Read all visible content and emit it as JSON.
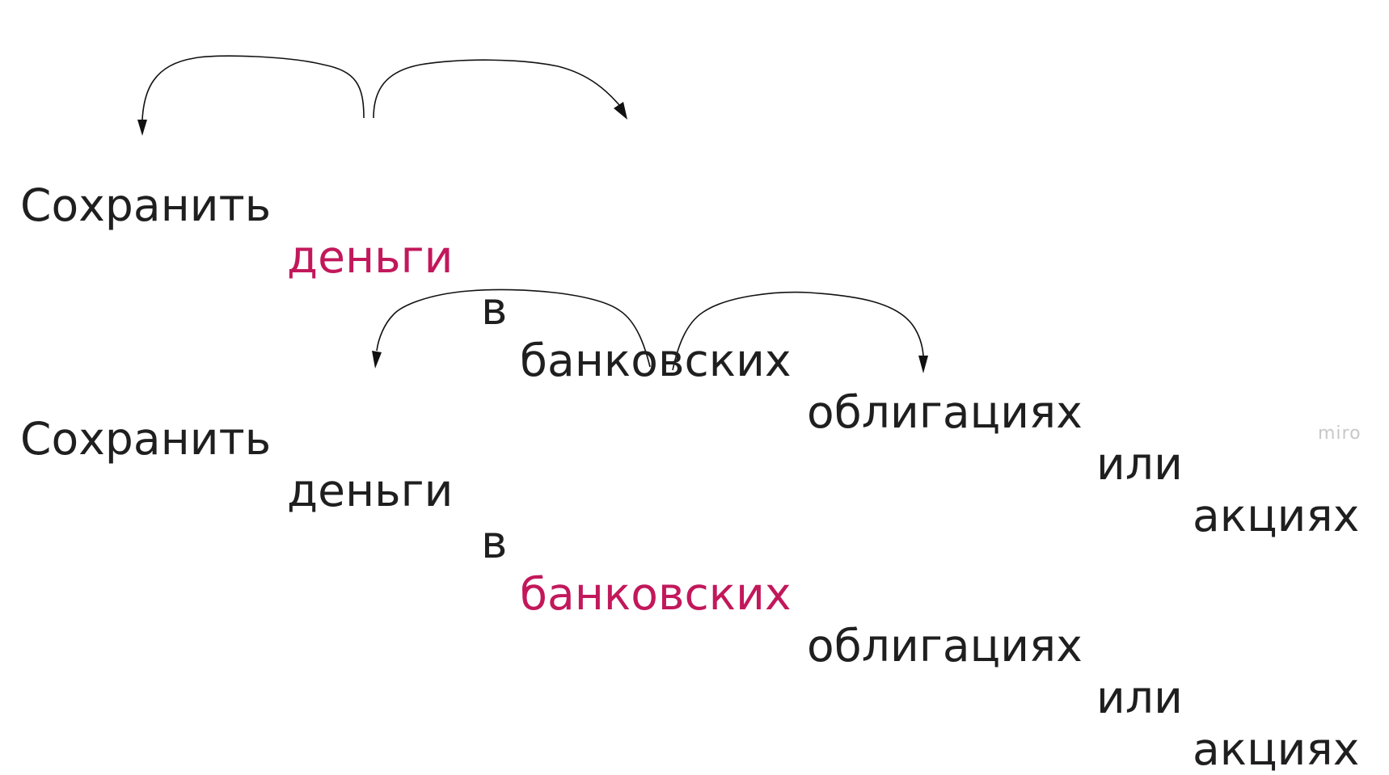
{
  "highlight_color": "#c2185b",
  "sentence_1": {
    "w1": "Сохранить",
    "w2": "деньги",
    "w3": "в",
    "w4": "банковских",
    "w5": "облигациях",
    "w6": "или",
    "w7": "акциях",
    "highlighted_word": "деньги"
  },
  "sentence_2": {
    "w1": "Сохранить",
    "w2": "деньги",
    "w3": "в",
    "w4": "банковских",
    "w5": "облигациях",
    "w6": "или",
    "w7": "акциях",
    "highlighted_word": "банковских"
  },
  "watermark": "miro"
}
